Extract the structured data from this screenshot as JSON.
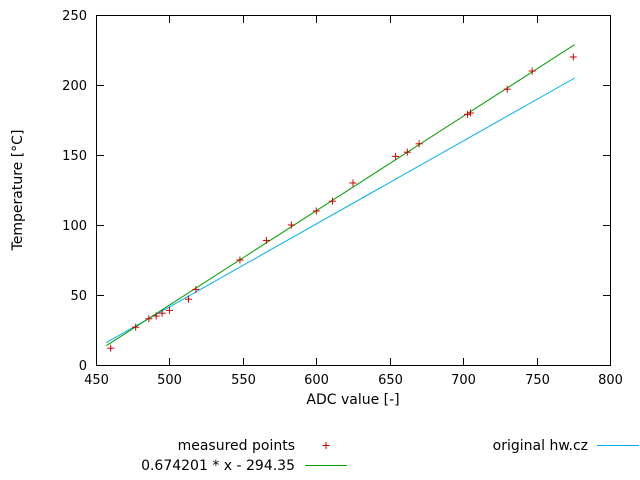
{
  "colors": {
    "background": "#ffffff",
    "axis": "#000000",
    "text": "#000000",
    "measured": "#cc0000",
    "fit_line": "#00a000",
    "original_line": "#00b0f0"
  },
  "chart_data": {
    "type": "scatter",
    "title": "",
    "xlabel": "ADC value [-]",
    "ylabel": "Temperature [°C]",
    "xlim": [
      450,
      800
    ],
    "ylim": [
      0,
      250
    ],
    "xticks": [
      450,
      500,
      550,
      600,
      650,
      700,
      750,
      800
    ],
    "yticks": [
      0,
      50,
      100,
      150,
      200,
      250
    ],
    "grid": false,
    "legend_position": "below-plot",
    "series": [
      {
        "name": "measured points",
        "kind": "points",
        "marker": "plus",
        "color": "#cc0000",
        "points": [
          [
            460,
            12
          ],
          [
            477,
            27
          ],
          [
            486,
            33
          ],
          [
            491,
            35
          ],
          [
            495,
            37
          ],
          [
            500,
            39
          ],
          [
            513,
            47
          ],
          [
            518,
            54
          ],
          [
            548,
            75
          ],
          [
            566,
            89
          ],
          [
            583,
            100
          ],
          [
            600,
            110
          ],
          [
            611,
            117
          ],
          [
            625,
            130
          ],
          [
            654,
            149
          ],
          [
            662,
            152
          ],
          [
            670,
            158
          ],
          [
            703,
            179
          ],
          [
            705,
            180
          ],
          [
            730,
            197
          ],
          [
            747,
            210
          ],
          [
            775,
            220
          ]
        ]
      },
      {
        "name": "0.674201 * x - 294.35",
        "kind": "line",
        "color": "#00a000",
        "slope": 0.674201,
        "intercept": -294.35,
        "points": [
          [
            457,
            13.77
          ],
          [
            776,
            228.86
          ]
        ]
      },
      {
        "name": "original hw.cz",
        "kind": "line",
        "color": "#00b0f0",
        "points": [
          [
            457,
            16
          ],
          [
            776,
            205
          ]
        ]
      }
    ],
    "legend": [
      {
        "label": "measured points",
        "series": 0,
        "col": "left",
        "row": 0
      },
      {
        "label": "0.674201 * x - 294.35",
        "series": 1,
        "col": "left",
        "row": 1
      },
      {
        "label": "original hw.cz",
        "series": 2,
        "col": "right",
        "row": 0
      }
    ]
  }
}
